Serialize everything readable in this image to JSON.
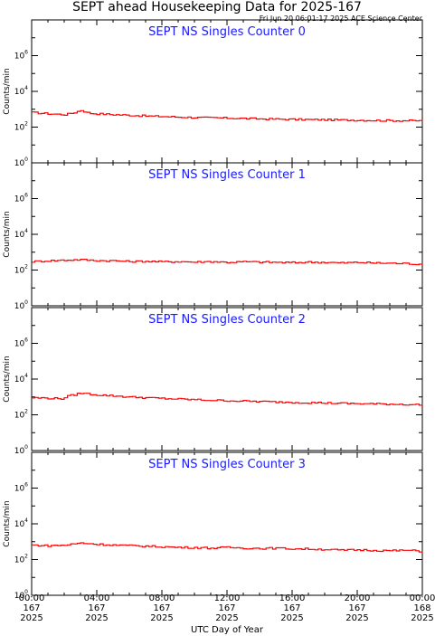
{
  "header": {
    "title": "SEPT ahead Housekeeping Data for 2025-167",
    "timestamp": "Fri Jun 20 06:01:17 2025 ACE Science Center"
  },
  "colors": {
    "series": "#ff0000",
    "panel_title": "#1a1aff",
    "axes": "#000000"
  },
  "chart_data": [
    {
      "type": "line",
      "title": "SEPT NS Singles Counter 0",
      "ylabel": "Counts/min",
      "yscale": "log",
      "ylim": [
        1,
        100000000
      ],
      "yticks": [
        1,
        100,
        10000,
        1000000
      ],
      "xlim": [
        0,
        24
      ],
      "x": [
        0,
        1,
        2,
        2.5,
        3,
        3.5,
        4,
        5,
        6,
        7,
        8,
        9,
        10,
        11,
        12,
        13,
        14,
        15,
        16,
        17,
        18,
        19,
        20,
        21,
        22,
        23,
        24
      ],
      "y": [
        650,
        560,
        500,
        620,
        880,
        600,
        560,
        500,
        460,
        420,
        390,
        365,
        345,
        330,
        320,
        305,
        290,
        280,
        270,
        262,
        258,
        250,
        243,
        237,
        232,
        228,
        225
      ]
    },
    {
      "type": "line",
      "title": "SEPT NS Singles Counter 1",
      "ylabel": "Counts/min",
      "yscale": "log",
      "ylim": [
        1,
        100000000
      ],
      "yticks": [
        1,
        100,
        10000,
        1000000
      ],
      "xlim": [
        0,
        24
      ],
      "x": [
        0,
        1,
        2,
        3,
        4,
        5,
        6,
        7,
        8,
        9,
        10,
        11,
        12,
        13,
        14,
        15,
        16,
        17,
        18,
        19,
        20,
        21,
        22,
        23,
        24
      ],
      "y": [
        300,
        330,
        360,
        380,
        340,
        330,
        300,
        310,
        290,
        300,
        280,
        300,
        270,
        290,
        280,
        270,
        260,
        280,
        270,
        250,
        270,
        250,
        240,
        230,
        210
      ]
    },
    {
      "type": "line",
      "title": "SEPT NS Singles Counter 2",
      "ylabel": "Counts/min",
      "yscale": "log",
      "ylim": [
        1,
        100000000
      ],
      "yticks": [
        1,
        100,
        10000,
        1000000
      ],
      "xlim": [
        0,
        24
      ],
      "x": [
        0,
        1,
        1.8,
        2.2,
        3,
        3.5,
        4,
        5,
        6,
        7,
        8,
        9,
        10,
        11,
        12,
        13,
        14,
        15,
        16,
        17,
        18,
        19,
        20,
        21,
        22,
        23,
        24
      ],
      "y": [
        900,
        850,
        800,
        1100,
        1650,
        1450,
        1300,
        1150,
        1000,
        900,
        820,
        760,
        700,
        650,
        620,
        580,
        550,
        520,
        500,
        480,
        460,
        440,
        420,
        410,
        395,
        380,
        360
      ]
    },
    {
      "type": "line",
      "title": "SEPT NS Singles Counter 3",
      "ylabel": "Counts/min",
      "yscale": "log",
      "ylim": [
        1,
        100000000
      ],
      "yticks": [
        1,
        100,
        10000,
        1000000
      ],
      "xlim": [
        0,
        24
      ],
      "x": [
        0,
        1,
        2,
        3,
        4,
        5,
        6,
        7,
        8,
        9,
        10,
        11,
        12,
        13,
        14,
        15,
        16,
        17,
        18,
        19,
        20,
        21,
        22,
        23,
        24
      ],
      "y": [
        650,
        600,
        640,
        850,
        720,
        650,
        600,
        560,
        520,
        480,
        470,
        440,
        480,
        440,
        420,
        430,
        400,
        390,
        370,
        330,
        350,
        330,
        310,
        330,
        290
      ]
    }
  ],
  "xaxis": {
    "label": "UTC Day of Year",
    "ticks": [
      {
        "x": 0,
        "time": "00:00",
        "day": "167",
        "year": "2025"
      },
      {
        "x": 4,
        "time": "04:00",
        "day": "167",
        "year": "2025"
      },
      {
        "x": 8,
        "time": "08:00",
        "day": "167",
        "year": "2025"
      },
      {
        "x": 12,
        "time": "12:00",
        "day": "167",
        "year": "2025"
      },
      {
        "x": 16,
        "time": "16:00",
        "day": "167",
        "year": "2025"
      },
      {
        "x": 20,
        "time": "20:00",
        "day": "167",
        "year": "2025"
      },
      {
        "x": 24,
        "time": "00:00",
        "day": "168",
        "year": "2025"
      }
    ]
  }
}
